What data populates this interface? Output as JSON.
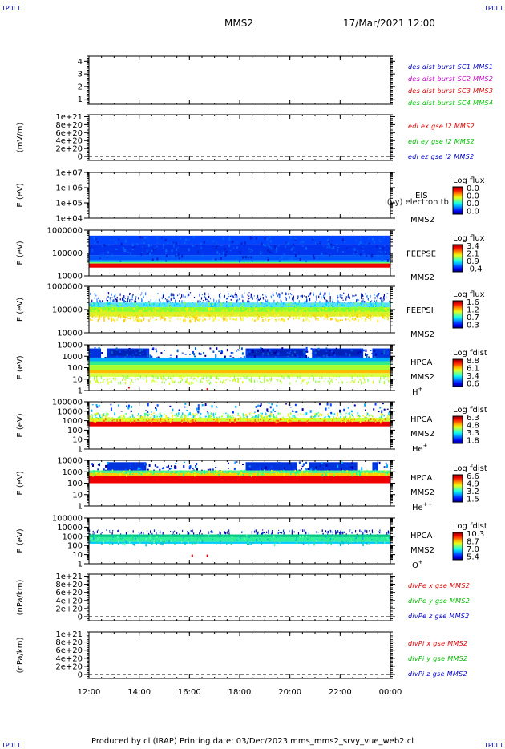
{
  "header": {
    "corner_left_top": "IPDLI",
    "corner_right_top": "IPDLI",
    "corner_left_bottom": "IPDLI",
    "corner_right_bottom": "IPDLI",
    "spacecraft": "MMS2",
    "datetime": "17/Mar/2021 12:00"
  },
  "footer": {
    "text": "Produced by cl (IRAP)    Printing date: 03/Dec/2023    mms_mms2_srvy_vue_web2.cl"
  },
  "colors": {
    "mms1": "#0000cc",
    "mms2": "#cc00cc",
    "mms3": "#dd0000",
    "mms4": "#00cc00",
    "red": "#dd0000",
    "green": "#00bb00",
    "blue": "#0000cc"
  },
  "chart_data": [
    {
      "type": "line",
      "panel": "burst",
      "yticks": [
        "1",
        "2",
        "3",
        "4"
      ],
      "ylim": [
        0.6,
        4.4
      ],
      "legend": [
        {
          "text": "des dist burst SC1 MMS1",
          "color": "#0000cc"
        },
        {
          "text": "des dist burst SC2 MMS2",
          "color": "#cc00cc"
        },
        {
          "text": "des dist burst SC3 MMS3",
          "color": "#dd0000"
        },
        {
          "text": "des dist burst SC4 MMS4",
          "color": "#00cc00"
        }
      ],
      "series": []
    },
    {
      "type": "line",
      "panel": "edi",
      "ylabel": "(mV/m)",
      "yticks": [
        "0",
        "2e+20",
        "4e+20",
        "6e+20",
        "8e+20",
        "1e+21"
      ],
      "ylim": [
        -1e+20,
        1.05e+21
      ],
      "legend": [
        {
          "text": "edi ex gse l2 MMS2",
          "color": "#dd0000"
        },
        {
          "text": "edi ey gse l2 MMS2",
          "color": "#00bb00"
        },
        {
          "text": "edi ez gse l2 MMS2",
          "color": "#0000cc"
        }
      ],
      "series": []
    },
    {
      "type": "heatmap",
      "panel": "eis",
      "ylabel": "E (eV)",
      "yticks": [
        "1e+04",
        "1e+05",
        "1e+06",
        "1e+07"
      ],
      "ylim": [
        10000,
        10000000
      ],
      "instrument": "EIS",
      "sub": "MMS2",
      "overlay_text": "l(vy) electron tb",
      "cbar_title": "Log flux",
      "cbar_ticks": [
        "0.0",
        "0.0",
        "0.0",
        "0.0"
      ]
    },
    {
      "type": "heatmap",
      "panel": "feepse",
      "ylabel": "E (eV)",
      "yticks": [
        "10000",
        "100000",
        "1000000"
      ],
      "ylim": [
        10000,
        1000000
      ],
      "instrument": "FEEPSE",
      "sub": "MMS2",
      "cbar_title": "Log flux",
      "cbar_ticks": [
        "3.4",
        "2.1",
        "0.9",
        "-0.4"
      ]
    },
    {
      "type": "heatmap",
      "panel": "feepsi",
      "ylabel": "E (eV)",
      "yticks": [
        "10000",
        "100000",
        "1000000"
      ],
      "ylim": [
        10000,
        1000000
      ],
      "instrument": "FEEPSI",
      "sub": "MMS2",
      "cbar_title": "Log flux",
      "cbar_ticks": [
        "1.6",
        "1.2",
        "0.7",
        "0.3"
      ]
    },
    {
      "type": "heatmap",
      "panel": "hpca_h",
      "ylabel": "E (eV)",
      "yticks": [
        "1",
        "10",
        "100",
        "1000",
        "10000"
      ],
      "ylim": [
        1,
        10000
      ],
      "instrument": "HPCA",
      "sub": "MMS2",
      "species": "H",
      "species_sup": "+",
      "cbar_title": "Log fdist",
      "cbar_ticks": [
        "8.8",
        "6.1",
        "3.4",
        "0.6"
      ]
    },
    {
      "type": "heatmap",
      "panel": "hpca_he",
      "ylabel": "E (eV)",
      "yticks": [
        "1",
        "10",
        "100",
        "1000",
        "10000",
        "100000"
      ],
      "ylim": [
        1,
        100000
      ],
      "instrument": "HPCA",
      "sub": "MMS2",
      "species": "He",
      "species_sup": "+",
      "cbar_title": "Log fdist",
      "cbar_ticks": [
        "6.3",
        "4.8",
        "3.3",
        "1.8"
      ]
    },
    {
      "type": "heatmap",
      "panel": "hpca_hepp",
      "ylabel": "E (eV)",
      "yticks": [
        "1",
        "10",
        "100",
        "1000",
        "10000"
      ],
      "ylim": [
        1,
        10000
      ],
      "instrument": "HPCA",
      "sub": "MMS2",
      "species": "He",
      "species_sup": "++",
      "cbar_title": "Log fdist",
      "cbar_ticks": [
        "6.6",
        "4.9",
        "3.2",
        "1.5"
      ]
    },
    {
      "type": "heatmap",
      "panel": "hpca_o",
      "ylabel": "E (eV)",
      "yticks": [
        "1",
        "10",
        "100",
        "1000",
        "10000",
        "100000"
      ],
      "ylim": [
        1,
        100000
      ],
      "instrument": "HPCA",
      "sub": "MMS2",
      "species": "O",
      "species_sup": "+",
      "cbar_title": "Log fdist",
      "cbar_ticks": [
        "10.3",
        "8.7",
        "7.0",
        "5.4"
      ]
    },
    {
      "type": "line",
      "panel": "divpe",
      "ylabel": "(nPa/km)",
      "yticks": [
        "0",
        "2e+20",
        "4e+20",
        "6e+20",
        "8e+20",
        "1e+21"
      ],
      "ylim": [
        -1e+20,
        1.05e+21
      ],
      "legend": [
        {
          "text": "divPe x gse MMS2",
          "color": "#dd0000"
        },
        {
          "text": "divPe y gse MMS2",
          "color": "#00bb00"
        },
        {
          "text": "divPe z gse MMS2",
          "color": "#0000cc"
        }
      ],
      "series": []
    },
    {
      "type": "line",
      "panel": "divpi",
      "ylabel": "(nPa/km)",
      "yticks": [
        "0",
        "2e+20",
        "4e+20",
        "6e+20",
        "8e+20",
        "1e+21"
      ],
      "ylim": [
        -1e+20,
        1.05e+21
      ],
      "legend": [
        {
          "text": "divPi x gse MMS2",
          "color": "#dd0000"
        },
        {
          "text": "divPi y gse MMS2",
          "color": "#00bb00"
        },
        {
          "text": "divPi z gse MMS2",
          "color": "#0000cc"
        }
      ],
      "series": []
    }
  ],
  "xaxis": {
    "tick_labels": [
      "12:00",
      "14:00",
      "16:00",
      "18:00",
      "20:00",
      "22:00",
      "00:00"
    ]
  }
}
